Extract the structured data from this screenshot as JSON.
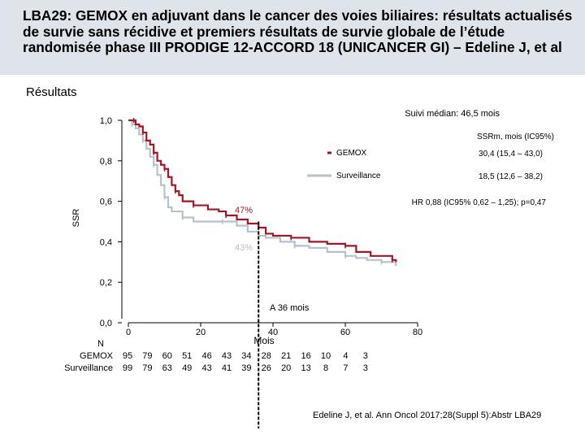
{
  "slide": {
    "title": "LBA29: GEMOX en adjuvant dans le cancer des voies biliaires: résultats actualisés de survie sans récidive et premiers résultats de survie globale de l’étude randomisée phase III PRODIGE 12-ACCORD 18 (UNICANCER GI) – Edeline J, et al",
    "section": "Résultats",
    "citation": "Edeline J, et al. Ann Oncol 2017;28(Suppl 5):Abstr LBA29"
  },
  "chart_data": {
    "type": "line",
    "ylabel": "SSR",
    "xlabel": "Mois",
    "xlim": [
      0,
      80
    ],
    "ylim": [
      0,
      1
    ],
    "x_ticks": [
      "0",
      "20",
      "40",
      "60",
      "80"
    ],
    "y_ticks": [
      "1,0",
      "0,8",
      "0,6",
      "0,4",
      "0,2",
      "0,0"
    ],
    "median_followup": "Suivi médian: 46,5 mois",
    "legend_header": "SSRm, mois (IC95%)",
    "hr_text": "HR 0,88 (IC95% 0,62 – 1,25); p=0,47",
    "vline_label": "A 36 mois",
    "vline_x": 36,
    "label_gemox": "47%",
    "label_surv": "43%",
    "series": [
      {
        "name": "GEMOX",
        "median_text": "30,4 (15,4 – 43,0)",
        "color": "#a31724",
        "points": [
          [
            0,
            1.0
          ],
          [
            1.5,
            1.0
          ],
          [
            2,
            0.98
          ],
          [
            3,
            0.97
          ],
          [
            4,
            0.94
          ],
          [
            5,
            0.9
          ],
          [
            6,
            0.88
          ],
          [
            7,
            0.84
          ],
          [
            8,
            0.8
          ],
          [
            9,
            0.78
          ],
          [
            10,
            0.76
          ],
          [
            11,
            0.72
          ],
          [
            12,
            0.68
          ],
          [
            13,
            0.65
          ],
          [
            14,
            0.63
          ],
          [
            15,
            0.6
          ],
          [
            18,
            0.58
          ],
          [
            22,
            0.56
          ],
          [
            25,
            0.55
          ],
          [
            27,
            0.53
          ],
          [
            30,
            0.51
          ],
          [
            33,
            0.49
          ],
          [
            36,
            0.47
          ],
          [
            38,
            0.44
          ],
          [
            40,
            0.43
          ],
          [
            45,
            0.42
          ],
          [
            50,
            0.4
          ],
          [
            55,
            0.39
          ],
          [
            60,
            0.38
          ],
          [
            63,
            0.35
          ],
          [
            67,
            0.33
          ],
          [
            73,
            0.31
          ],
          [
            74,
            0.3
          ]
        ]
      },
      {
        "name": "Surveillance",
        "median_text": "18,5 (12,6 – 38,2)",
        "color": "#b8c0ca",
        "points": [
          [
            0,
            1.0
          ],
          [
            1,
            0.98
          ],
          [
            2,
            0.96
          ],
          [
            3,
            0.93
          ],
          [
            4,
            0.9
          ],
          [
            5,
            0.86
          ],
          [
            6,
            0.82
          ],
          [
            7,
            0.78
          ],
          [
            8,
            0.73
          ],
          [
            9,
            0.68
          ],
          [
            10,
            0.62
          ],
          [
            11,
            0.57
          ],
          [
            12,
            0.55
          ],
          [
            15,
            0.52
          ],
          [
            18,
            0.5
          ],
          [
            22,
            0.5
          ],
          [
            26,
            0.5
          ],
          [
            30,
            0.48
          ],
          [
            33,
            0.45
          ],
          [
            36,
            0.43
          ],
          [
            38,
            0.42
          ],
          [
            42,
            0.4
          ],
          [
            46,
            0.38
          ],
          [
            50,
            0.37
          ],
          [
            55,
            0.35
          ],
          [
            60,
            0.33
          ],
          [
            63,
            0.32
          ],
          [
            66,
            0.31
          ],
          [
            70,
            0.3
          ],
          [
            74,
            0.28
          ]
        ]
      }
    ],
    "risk_table": {
      "header": "N",
      "rows": [
        {
          "label": "GEMOX",
          "values": [
            "95",
            "79",
            "60",
            "51",
            "46",
            "43",
            "34",
            "28",
            "21",
            "16",
            "10",
            "4",
            "3"
          ]
        },
        {
          "label": "Surveillance",
          "values": [
            "99",
            "79",
            "63",
            "49",
            "43",
            "41",
            "39",
            "26",
            "20",
            "13",
            "8",
            "7",
            "3"
          ]
        }
      ]
    }
  }
}
